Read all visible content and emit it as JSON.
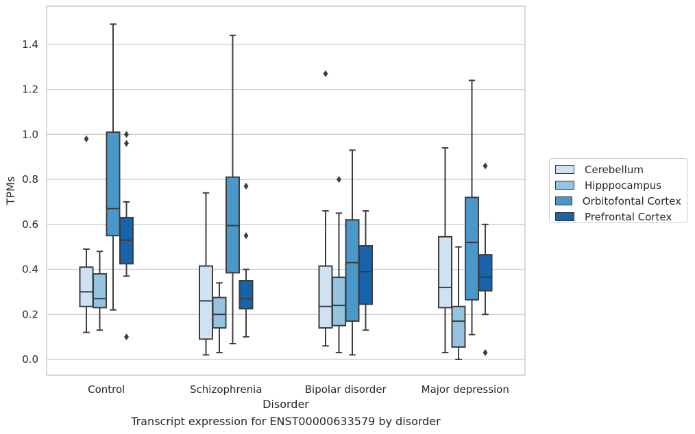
{
  "chart_data": {
    "type": "box",
    "caption": "Transcript expression for ENST00000633579 by disorder",
    "xlabel": "Disorder",
    "ylabel": "TPMs",
    "ylim": [
      -0.07,
      1.57
    ],
    "yticks": [
      "0.0",
      "0.2",
      "0.4",
      "0.6",
      "0.8",
      "1.0",
      "1.2",
      "1.4"
    ],
    "ytick_values": [
      0.0,
      0.2,
      0.4,
      0.6,
      0.8,
      1.0,
      1.2,
      1.4
    ],
    "grid": "horizontal",
    "legend_position": "right",
    "categories": [
      "Control",
      "Schizophrenia",
      "Bipolar disorder",
      "Major depression"
    ],
    "series": [
      {
        "name": "Cerebellum",
        "color": "#d0e1f2",
        "boxes": [
          {
            "whislo": 0.12,
            "q1": 0.235,
            "med": 0.3,
            "q3": 0.41,
            "whishi": 0.49,
            "fliers": [
              0.98
            ]
          },
          {
            "whislo": 0.02,
            "q1": 0.09,
            "med": 0.26,
            "q3": 0.415,
            "whishi": 0.74,
            "fliers": []
          },
          {
            "whislo": 0.06,
            "q1": 0.14,
            "med": 0.235,
            "q3": 0.415,
            "whishi": 0.66,
            "fliers": [
              1.27
            ]
          },
          {
            "whislo": 0.03,
            "q1": 0.23,
            "med": 0.32,
            "q3": 0.545,
            "whishi": 0.94,
            "fliers": []
          }
        ]
      },
      {
        "name": "Hipppocampus",
        "color": "#94c4df",
        "boxes": [
          {
            "whislo": 0.13,
            "q1": 0.23,
            "med": 0.27,
            "q3": 0.38,
            "whishi": 0.48,
            "fliers": []
          },
          {
            "whislo": 0.03,
            "q1": 0.14,
            "med": 0.2,
            "q3": 0.275,
            "whishi": 0.34,
            "fliers": []
          },
          {
            "whislo": 0.03,
            "q1": 0.15,
            "med": 0.24,
            "q3": 0.365,
            "whishi": 0.65,
            "fliers": [
              0.8
            ]
          },
          {
            "whislo": 0.0,
            "q1": 0.055,
            "med": 0.17,
            "q3": 0.235,
            "whishi": 0.5,
            "fliers": []
          }
        ]
      },
      {
        "name": "Orbitofontal Cortex",
        "color": "#4a98c9",
        "boxes": [
          {
            "whislo": 0.22,
            "q1": 0.55,
            "med": 0.67,
            "q3": 1.01,
            "whishi": 1.49,
            "fliers": []
          },
          {
            "whislo": 0.07,
            "q1": 0.385,
            "med": 0.595,
            "q3": 0.81,
            "whishi": 1.44,
            "fliers": []
          },
          {
            "whislo": 0.02,
            "q1": 0.17,
            "med": 0.43,
            "q3": 0.62,
            "whishi": 0.93,
            "fliers": []
          },
          {
            "whislo": 0.11,
            "q1": 0.265,
            "med": 0.52,
            "q3": 0.72,
            "whishi": 1.24,
            "fliers": []
          }
        ]
      },
      {
        "name": "Prefrontal Cortex",
        "color": "#1764ab",
        "boxes": [
          {
            "whislo": 0.37,
            "q1": 0.425,
            "med": 0.53,
            "q3": 0.63,
            "whishi": 0.7,
            "fliers": [
              1.0,
              0.96,
              0.1
            ]
          },
          {
            "whislo": 0.1,
            "q1": 0.225,
            "med": 0.27,
            "q3": 0.35,
            "whishi": 0.4,
            "fliers": [
              0.77,
              0.55
            ]
          },
          {
            "whislo": 0.13,
            "q1": 0.245,
            "med": 0.39,
            "q3": 0.505,
            "whishi": 0.66,
            "fliers": []
          },
          {
            "whislo": 0.2,
            "q1": 0.305,
            "med": 0.365,
            "q3": 0.465,
            "whishi": 0.6,
            "fliers": [
              0.86,
              0.03
            ]
          }
        ]
      }
    ]
  }
}
